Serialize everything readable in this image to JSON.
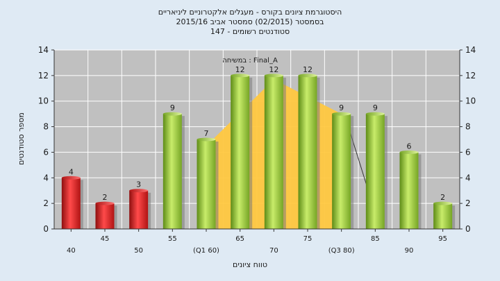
{
  "chart_data": {
    "type": "bar",
    "title_lines": [
      "היסטוגרמת ציונים בקורס - מעגלים אלקטרוניים ליניאריים",
      "בסמסטר  (02/2015)  סמסטר אביב 2015/16",
      "סטודנטים רשומים - 147"
    ],
    "categories": [
      "40",
      "45",
      "50",
      "55",
      "(Q1 60)",
      "65",
      "70",
      "75",
      "(Q3 80)",
      "85",
      "90",
      "95"
    ],
    "values": [
      4,
      2,
      3,
      9,
      7,
      12,
      12,
      12,
      9,
      9,
      6,
      2
    ],
    "bar_colors": [
      "#e02a2a",
      "#e02a2a",
      "#e02a2a",
      "#9ccc3a",
      "#9ccc3a",
      "#9ccc3a",
      "#9ccc3a",
      "#9ccc3a",
      "#9ccc3a",
      "#9ccc3a",
      "#9ccc3a",
      "#9ccc3a"
    ],
    "series": [
      {
        "name": "במשיחה : Final_A",
        "type": "area",
        "color": "#ffc840",
        "x": [
          60,
          70,
          80
        ],
        "y": [
          6.5,
          11.7,
          9
        ]
      }
    ],
    "ylim": [
      0,
      14
    ],
    "yticks": [
      0,
      2,
      4,
      6,
      8,
      10,
      12,
      14
    ],
    "ylabel": "מספר סטודנטים",
    "xlabel": "טווח ציונים",
    "grid": true,
    "legend": "top-center",
    "colors": {
      "background": "#dfeaf4",
      "plot_background": "#c0c0c0",
      "grid": "#ffffff",
      "fail": "#e02a2a",
      "pass": "#9ccc3a"
    }
  }
}
